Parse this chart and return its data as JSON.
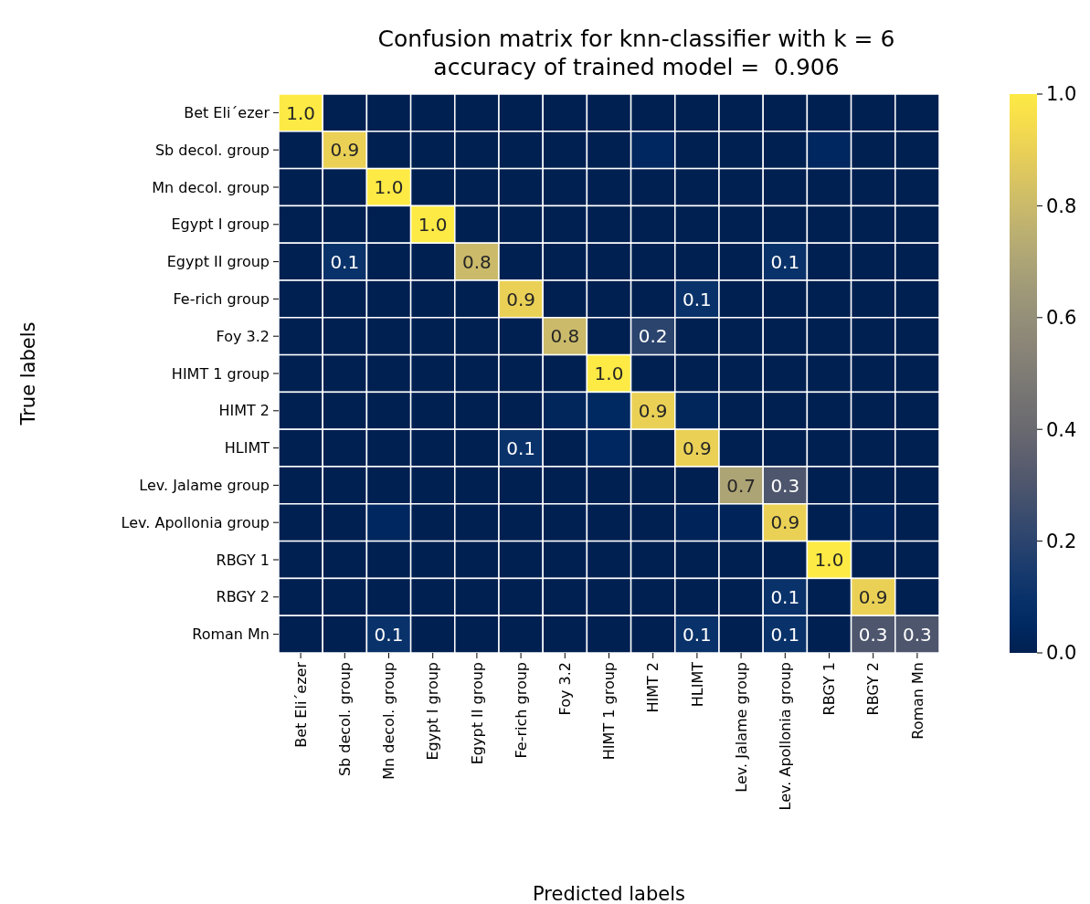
{
  "chart_data": {
    "type": "heatmap",
    "title": "Confusion matrix for knn-classifier with k = 6",
    "subtitle": "accuracy of trained model =  0.906",
    "xlabel": "Predicted labels",
    "ylabel": "True labels",
    "categories": [
      "Bet Eli´ezer",
      "Sb decol. group",
      "Mn decol. group",
      "Egypt I group",
      "Egypt II group",
      "Fe-rich group",
      "Foy 3.2",
      "HIMT 1 group",
      "HIMT 2",
      "HLIMT",
      "Lev. Jalame group",
      "Lev. Apollonia group",
      "RBGY 1",
      "RBGY 2",
      "Roman Mn"
    ],
    "y_categories": [
      "Bet Eli´ezer",
      "Sb decol. group",
      "Mn decol. group",
      "Egypt I group",
      "Egypt II group",
      "Fe-rich group",
      "Foy 3.2",
      "HIMT 1 group",
      "HIMT 2",
      "HLIMT",
      "Lev. Jalame group",
      "Lev. Apollonia group",
      "RBGY 1",
      "RBGY 2",
      "Roman Mn"
    ],
    "cells": [
      [
        1.0,
        0,
        0,
        0,
        0,
        0,
        0,
        0,
        0,
        0,
        0,
        0,
        0,
        0,
        0
      ],
      [
        0,
        0.9,
        0,
        0,
        0,
        0,
        0,
        0,
        0.04,
        0,
        0,
        0,
        0.04,
        0,
        0
      ],
      [
        0,
        0,
        1.0,
        0,
        0,
        0,
        0,
        0,
        0,
        0,
        0,
        0,
        0,
        0,
        0
      ],
      [
        0,
        0,
        0,
        1.0,
        0,
        0,
        0,
        0,
        0,
        0,
        0,
        0,
        0,
        0,
        0
      ],
      [
        0,
        0.1,
        0,
        0,
        0.8,
        0,
        0,
        0,
        0,
        0,
        0,
        0.1,
        0,
        0,
        0
      ],
      [
        0,
        0,
        0,
        0,
        0,
        0.9,
        0,
        0,
        0,
        0.1,
        0,
        0,
        0,
        0,
        0
      ],
      [
        0,
        0,
        0,
        0,
        0,
        0,
        0.8,
        0,
        0.2,
        0,
        0,
        0,
        0,
        0,
        0
      ],
      [
        0,
        0,
        0,
        0,
        0,
        0,
        0,
        1.0,
        0,
        0,
        0,
        0,
        0,
        0,
        0
      ],
      [
        0,
        0,
        0,
        0,
        0,
        0,
        0.03,
        0.05,
        0.9,
        0.03,
        0,
        0,
        0,
        0,
        0
      ],
      [
        0,
        0,
        0,
        0,
        0,
        0.1,
        0,
        0.04,
        0,
        0.9,
        0,
        0,
        0,
        0,
        0
      ],
      [
        0,
        0,
        0,
        0,
        0,
        0,
        0,
        0,
        0,
        0,
        0.7,
        0.3,
        0,
        0,
        0
      ],
      [
        0,
        0,
        0.04,
        0,
        0,
        0,
        0,
        0,
        0,
        0.02,
        0.02,
        0.9,
        0,
        0.02,
        0
      ],
      [
        0,
        0,
        0,
        0,
        0,
        0,
        0,
        0,
        0,
        0,
        0,
        0,
        1.0,
        0,
        0
      ],
      [
        0,
        0,
        0,
        0,
        0,
        0,
        0,
        0,
        0,
        0,
        0,
        0.1,
        0,
        0.9,
        0
      ],
      [
        0,
        0,
        0.1,
        0,
        0,
        0,
        0,
        0,
        0,
        0.1,
        0,
        0.1,
        0,
        0.3,
        0.3
      ]
    ],
    "cell_labels": [
      [
        "1.0",
        null,
        null,
        null,
        null,
        null,
        null,
        null,
        null,
        null,
        null,
        null,
        null,
        null,
        null
      ],
      [
        null,
        "0.9",
        null,
        null,
        null,
        null,
        null,
        null,
        null,
        null,
        null,
        null,
        null,
        null,
        null
      ],
      [
        null,
        null,
        "1.0",
        null,
        null,
        null,
        null,
        null,
        null,
        null,
        null,
        null,
        null,
        null,
        null
      ],
      [
        null,
        null,
        null,
        "1.0",
        null,
        null,
        null,
        null,
        null,
        null,
        null,
        null,
        null,
        null,
        null
      ],
      [
        null,
        "0.1",
        null,
        null,
        "0.8",
        null,
        null,
        null,
        null,
        null,
        null,
        "0.1",
        null,
        null,
        null
      ],
      [
        null,
        null,
        null,
        null,
        null,
        "0.9",
        null,
        null,
        null,
        "0.1",
        null,
        null,
        null,
        null,
        null
      ],
      [
        null,
        null,
        null,
        null,
        null,
        null,
        "0.8",
        null,
        "0.2",
        null,
        null,
        null,
        null,
        null,
        null
      ],
      [
        null,
        null,
        null,
        null,
        null,
        null,
        null,
        "1.0",
        null,
        null,
        null,
        null,
        null,
        null,
        null
      ],
      [
        null,
        null,
        null,
        null,
        null,
        null,
        null,
        null,
        "0.9",
        null,
        null,
        null,
        null,
        null,
        null
      ],
      [
        null,
        null,
        null,
        null,
        null,
        "0.1",
        null,
        null,
        null,
        "0.9",
        null,
        null,
        null,
        null,
        null
      ],
      [
        null,
        null,
        null,
        null,
        null,
        null,
        null,
        null,
        null,
        null,
        "0.7",
        "0.3",
        null,
        null,
        null
      ],
      [
        null,
        null,
        null,
        null,
        null,
        null,
        null,
        null,
        null,
        null,
        null,
        "0.9",
        null,
        null,
        null
      ],
      [
        null,
        null,
        null,
        null,
        null,
        null,
        null,
        null,
        null,
        null,
        null,
        null,
        "1.0",
        null,
        null
      ],
      [
        null,
        null,
        null,
        null,
        null,
        null,
        null,
        null,
        null,
        null,
        null,
        "0.1",
        null,
        "0.9",
        null
      ],
      [
        null,
        null,
        "0.1",
        null,
        null,
        null,
        null,
        null,
        null,
        "0.1",
        null,
        "0.1",
        null,
        "0.3",
        "0.3"
      ]
    ],
    "clim": [
      0,
      1
    ],
    "cticks": [
      {
        "value": 0,
        "label": "0.0"
      },
      {
        "value": 0.2,
        "label": "0.2"
      },
      {
        "value": 0.4,
        "label": "0.4"
      },
      {
        "value": 0.6,
        "label": "0.6"
      },
      {
        "value": 0.8,
        "label": "0.8"
      },
      {
        "value": 1,
        "label": "1.0"
      }
    ]
  }
}
